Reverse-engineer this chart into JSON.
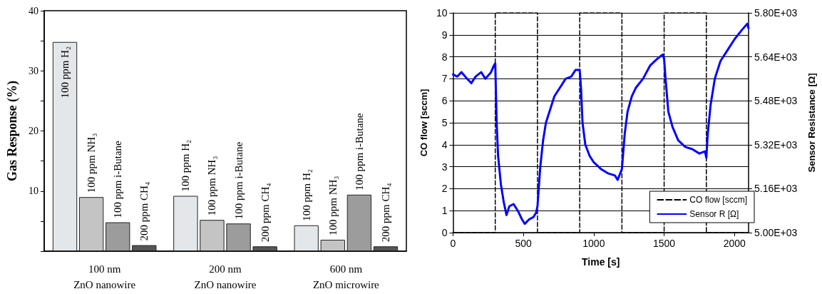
{
  "chart_data": [
    {
      "type": "bar",
      "ylabel": "Gas Response (%)",
      "categories": [
        "100 nm\nZnO nanowire",
        "200 nm\nZnO nanowire",
        "600 nm\nZnO microwire"
      ],
      "series": [
        {
          "name": "100 ppm H₂",
          "color": "#e4e7ea",
          "values": [
            34.8,
            9.2,
            4.3
          ]
        },
        {
          "name": "100 ppm NH₃",
          "color": "#c4c4c4",
          "values": [
            9.0,
            5.2,
            1.9
          ]
        },
        {
          "name": "100 ppm i-Butane",
          "color": "#9c9c9c",
          "values": [
            4.8,
            4.6,
            9.4
          ]
        },
        {
          "name": "200 ppm CH₄",
          "color": "#555555",
          "values": [
            1.0,
            0.8,
            0.8
          ]
        }
      ],
      "ylim": [
        0,
        40
      ],
      "yticks": [
        {
          "value": 0,
          "label": null
        },
        {
          "value": 5,
          "label": null
        },
        10,
        {
          "value": 15,
          "label": null
        },
        20,
        {
          "value": 25,
          "label": null
        },
        30,
        {
          "value": 35,
          "label": null
        },
        40
      ],
      "grid": false,
      "legend": false
    },
    {
      "type": "line",
      "xlabel": "Time [s]",
      "ylabel": "CO flow [sccm]",
      "y2label": "Sensor Resistance [Ω]",
      "series": [
        {
          "name": "CO flow [sccm]",
          "color": "#000000",
          "line_style": "dashed",
          "x": [
            0,
            300,
            300,
            600,
            600,
            900,
            900,
            1200,
            1200,
            1500,
            1500,
            1800,
            1800,
            2100
          ],
          "values": [
            0,
            0,
            10,
            10,
            0,
            0,
            10,
            10,
            0,
            0,
            10,
            10,
            0,
            0
          ]
        },
        {
          "name": "Sensor R [Ω]",
          "color": "#0000ff",
          "axis": "y2",
          "line_style": "solid",
          "x": [
            0,
            30,
            60,
            100,
            130,
            160,
            200,
            230,
            270,
            290,
            300,
            310,
            320,
            340,
            360,
            380,
            400,
            430,
            460,
            490,
            510,
            540,
            570,
            590,
            600,
            620,
            640,
            660,
            690,
            720,
            760,
            800,
            840,
            870,
            900,
            910,
            920,
            940,
            970,
            1000,
            1050,
            1100,
            1150,
            1170,
            1200,
            1220,
            1240,
            1270,
            1300,
            1350,
            1400,
            1450,
            1490,
            1500,
            1510,
            1530,
            1560,
            1600,
            1650,
            1700,
            1750,
            1790,
            1800,
            1810,
            1830,
            1860,
            1900,
            1950,
            2000,
            2050,
            2090,
            2100
          ],
          "values": [
            5576,
            5568,
            5584,
            5560,
            5544,
            5568,
            5584,
            5560,
            5584,
            5608,
            5616,
            5400,
            5280,
            5176,
            5112,
            5064,
            5096,
            5104,
            5080,
            5048,
            5032,
            5048,
            5056,
            5072,
            5096,
            5240,
            5336,
            5400,
            5448,
            5496,
            5528,
            5560,
            5568,
            5592,
            5592,
            5520,
            5400,
            5320,
            5280,
            5256,
            5232,
            5216,
            5208,
            5192,
            5232,
            5360,
            5440,
            5496,
            5528,
            5560,
            5608,
            5632,
            5648,
            5632,
            5560,
            5440,
            5384,
            5336,
            5312,
            5304,
            5288,
            5296,
            5272,
            5360,
            5464,
            5560,
            5624,
            5664,
            5704,
            5736,
            5760,
            5744
          ]
        }
      ],
      "xlim": [
        0,
        2100
      ],
      "xticks": [
        0,
        500,
        1000,
        1500,
        2000
      ],
      "ylim": [
        0,
        10
      ],
      "yticks": [
        0,
        1,
        2,
        3,
        4,
        5,
        6,
        7,
        8,
        9,
        10
      ],
      "y2lim": [
        5000,
        5800
      ],
      "y2ticks": [
        {
          "value": 5000,
          "label": "5.00E+03"
        },
        {
          "value": 5160,
          "label": "5.16E+03"
        },
        {
          "value": 5320,
          "label": "5.32E+03"
        },
        {
          "value": 5480,
          "label": "5.48E+03"
        },
        {
          "value": 5640,
          "label": "5.64E+03"
        },
        {
          "value": 5800,
          "label": "5.80E+03"
        }
      ],
      "grid": "y",
      "legend": "bottom right",
      "marker": "none"
    }
  ]
}
